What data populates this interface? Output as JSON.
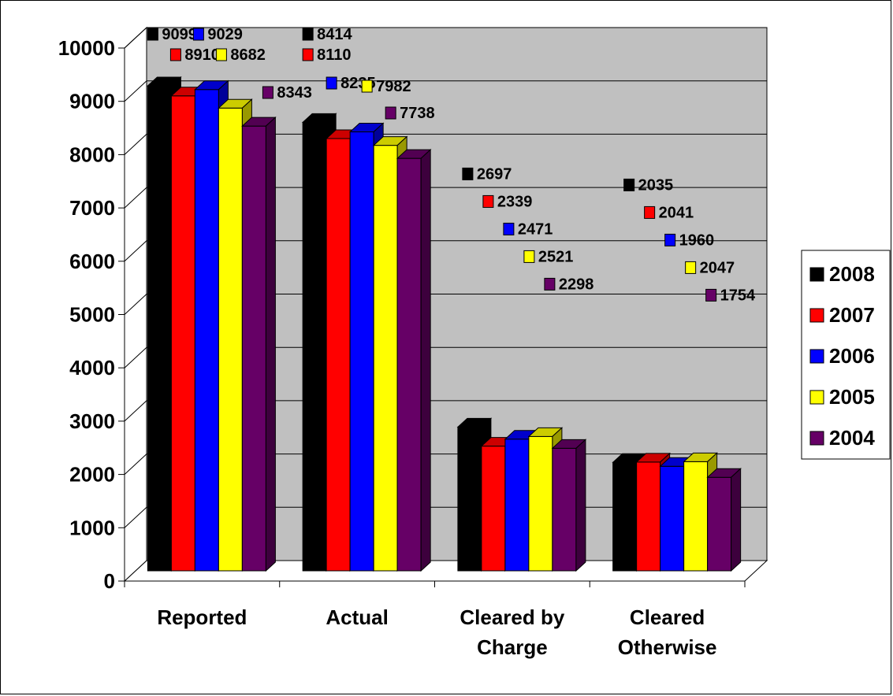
{
  "chart_data": {
    "type": "bar",
    "categories": [
      [
        "Reported"
      ],
      [
        "Actual"
      ],
      [
        "Cleared by",
        "Charge"
      ],
      [
        "Cleared",
        "Otherwise"
      ]
    ],
    "series": [
      {
        "name": "2008",
        "color": "#000000",
        "values": [
          9099,
          8414,
          2697,
          2035
        ]
      },
      {
        "name": "2007",
        "color": "#ff0000",
        "values": [
          8910,
          8110,
          2339,
          2041
        ]
      },
      {
        "name": "2006",
        "color": "#0000ff",
        "values": [
          9029,
          8235,
          2471,
          1960
        ]
      },
      {
        "name": "2005",
        "color": "#ffff00",
        "values": [
          8682,
          7982,
          2521,
          2047
        ]
      },
      {
        "name": "2004",
        "color": "#660066",
        "values": [
          8343,
          7738,
          2298,
          1754
        ]
      }
    ],
    "ylim": [
      0,
      10000
    ],
    "yticks": [
      0,
      1000,
      2000,
      3000,
      4000,
      5000,
      6000,
      7000,
      8000,
      9000,
      10000
    ],
    "grid": true,
    "legend": "right",
    "wall_color": "#c0c0c0"
  }
}
